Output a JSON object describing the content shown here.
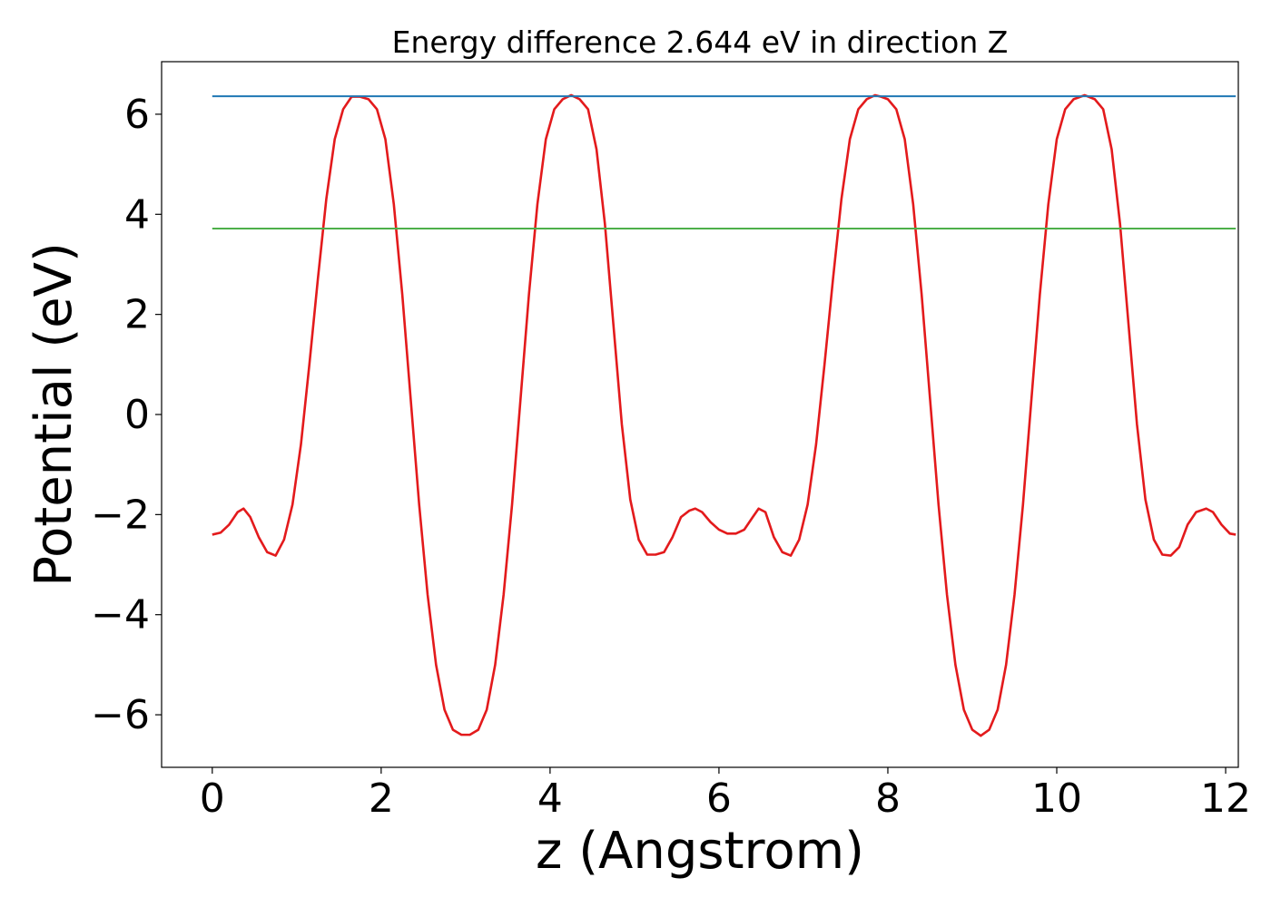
{
  "chart_data": {
    "type": "line",
    "title": "Energy difference 2.644 eV in direction Z",
    "xlabel": "z (Angstrom)",
    "ylabel": "Potential (eV)",
    "xlim": [
      -0.6,
      12.15
    ],
    "ylim": [
      -7.05,
      7.05
    ],
    "xticks": [
      0,
      2,
      4,
      6,
      8,
      10,
      12
    ],
    "yticks": [
      -6,
      -4,
      -2,
      0,
      2,
      4,
      6
    ],
    "xtick_labels": [
      "0",
      "2",
      "4",
      "6",
      "8",
      "10",
      "12"
    ],
    "ytick_labels": [
      "−6",
      "−4",
      "−2",
      "0",
      "2",
      "4",
      "6"
    ],
    "grid": false,
    "series": [
      {
        "color": "#e31a1c",
        "x": [
          0.0,
          0.1,
          0.2,
          0.3,
          0.37,
          0.45,
          0.55,
          0.65,
          0.75,
          0.85,
          0.95,
          1.05,
          1.15,
          1.25,
          1.35,
          1.45,
          1.55,
          1.65,
          1.75,
          1.85,
          1.95,
          2.05,
          2.15,
          2.25,
          2.35,
          2.45,
          2.55,
          2.65,
          2.75,
          2.85,
          2.95,
          3.05,
          3.15,
          3.25,
          3.35,
          3.45,
          3.55,
          3.65,
          3.75,
          3.85,
          3.95,
          4.05,
          4.15,
          4.25,
          4.35,
          4.45,
          4.55,
          4.65,
          4.75,
          4.85,
          4.95,
          5.05,
          5.15,
          5.25,
          5.35,
          5.45,
          5.55,
          5.65,
          5.72,
          5.8,
          5.9,
          6.0,
          6.1,
          6.2,
          6.3,
          6.4,
          6.47,
          6.55,
          6.65,
          6.75,
          6.85,
          6.95,
          7.05,
          7.15,
          7.25,
          7.35,
          7.45,
          7.55,
          7.65,
          7.75,
          7.85,
          7.92,
          8.0,
          8.1,
          8.2,
          8.3,
          8.4,
          8.5,
          8.6,
          8.7,
          8.8,
          8.9,
          9.0,
          9.1,
          9.2,
          9.3,
          9.4,
          9.5,
          9.6,
          9.7,
          9.8,
          9.9,
          10.0,
          10.1,
          10.2,
          10.33,
          10.45,
          10.55,
          10.65,
          10.75,
          10.85,
          10.95,
          11.05,
          11.15,
          11.25,
          11.35,
          11.45,
          11.55,
          11.65,
          11.77,
          11.85,
          11.95,
          12.05,
          12.12
        ],
        "y": [
          -2.4,
          -2.36,
          -2.2,
          -1.95,
          -1.88,
          -2.05,
          -2.45,
          -2.75,
          -2.82,
          -2.5,
          -1.8,
          -0.6,
          1.0,
          2.7,
          4.3,
          5.5,
          6.1,
          6.35,
          6.35,
          6.3,
          6.1,
          5.5,
          4.2,
          2.4,
          0.3,
          -1.8,
          -3.6,
          -5.0,
          -5.9,
          -6.3,
          -6.4,
          -6.4,
          -6.3,
          -5.9,
          -5.0,
          -3.6,
          -1.8,
          0.3,
          2.4,
          4.2,
          5.5,
          6.1,
          6.3,
          6.38,
          6.3,
          6.1,
          5.3,
          3.8,
          1.8,
          -0.2,
          -1.7,
          -2.5,
          -2.8,
          -2.8,
          -2.75,
          -2.45,
          -2.05,
          -1.92,
          -1.88,
          -1.95,
          -2.15,
          -2.3,
          -2.38,
          -2.38,
          -2.3,
          -2.05,
          -1.88,
          -1.95,
          -2.45,
          -2.75,
          -2.82,
          -2.5,
          -1.8,
          -0.6,
          1.0,
          2.7,
          4.3,
          5.5,
          6.1,
          6.3,
          6.38,
          6.35,
          6.3,
          6.1,
          5.5,
          4.2,
          2.4,
          0.3,
          -1.8,
          -3.6,
          -5.0,
          -5.9,
          -6.3,
          -6.42,
          -6.3,
          -5.9,
          -5.0,
          -3.6,
          -1.8,
          0.3,
          2.4,
          4.2,
          5.5,
          6.1,
          6.3,
          6.38,
          6.3,
          6.1,
          5.3,
          3.8,
          1.8,
          -0.2,
          -1.7,
          -2.5,
          -2.8,
          -2.82,
          -2.65,
          -2.2,
          -1.95,
          -1.88,
          -1.95,
          -2.2,
          -2.38,
          -2.4
        ]
      },
      {
        "color": "#1f77b4",
        "x": [
          0.0,
          12.12
        ],
        "y": [
          6.36,
          6.36
        ]
      },
      {
        "color": "#4daf4a",
        "x": [
          0.0,
          12.12
        ],
        "y": [
          3.716,
          3.716
        ]
      }
    ]
  }
}
